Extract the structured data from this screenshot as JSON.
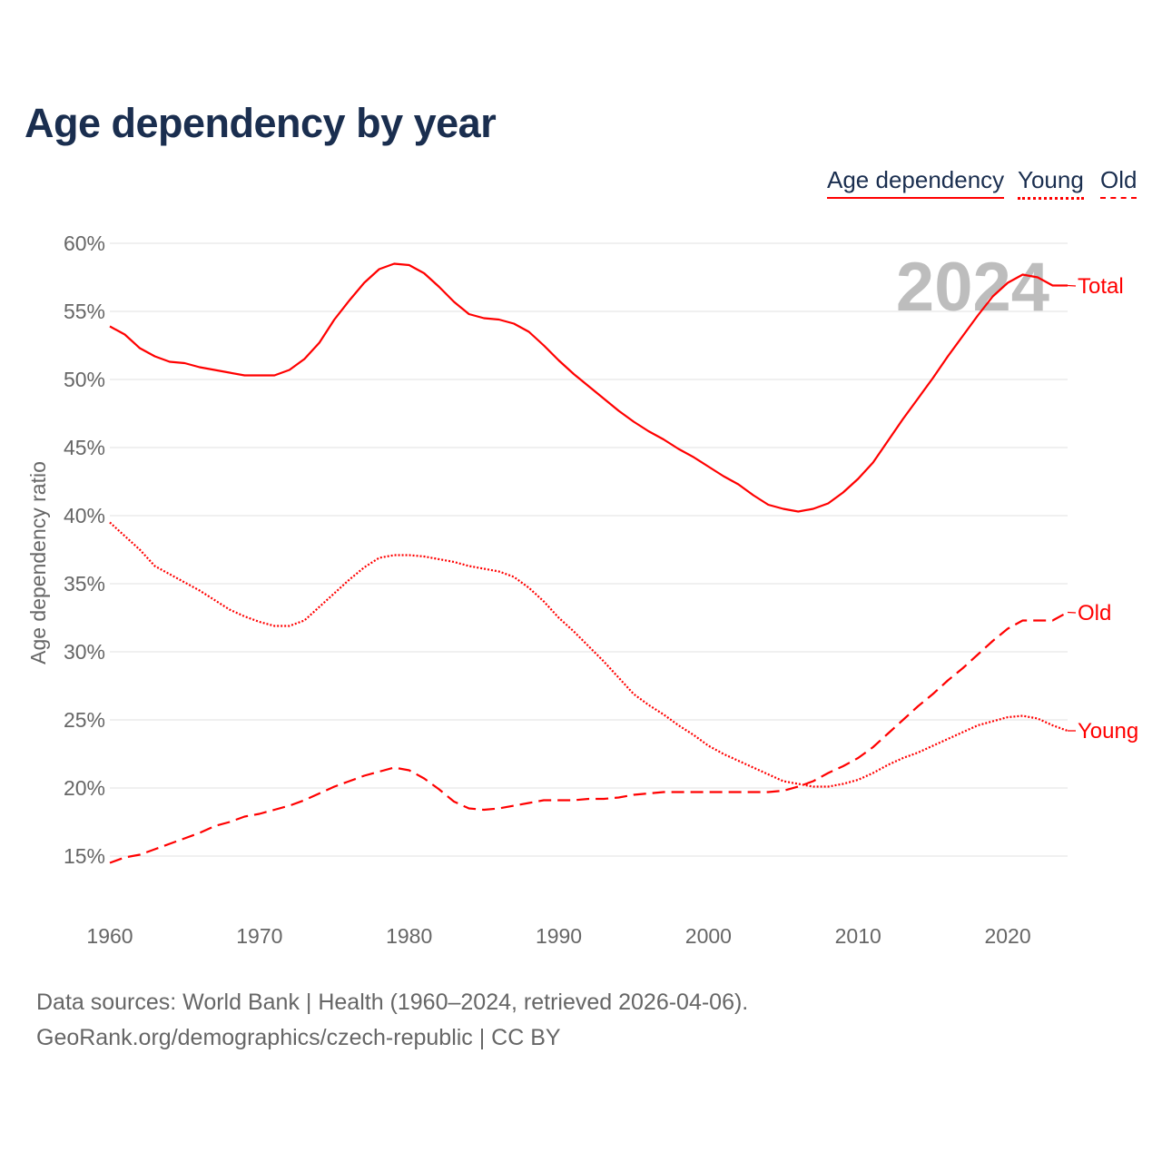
{
  "title": "Age dependency by year",
  "legend": [
    {
      "label": "Age dependency",
      "style": "solid"
    },
    {
      "label": "Young",
      "style": "dotted"
    },
    {
      "label": "Old",
      "style": "dashed"
    }
  ],
  "footer": {
    "line1": "Data sources: World Bank | Health (1960–2024, retrieved 2026-04-06).",
    "line2": "GeoRank.org/demographics/czech-republic | CC BY"
  },
  "chart_data": {
    "type": "line",
    "title": "Age dependency by year",
    "xlabel": "",
    "ylabel": "Age dependency ratio",
    "watermark_year": "2024",
    "xlim": [
      1960,
      2024
    ],
    "ylim": [
      15,
      60
    ],
    "x_ticks": [
      1960,
      1970,
      1980,
      1990,
      2000,
      2010,
      2020
    ],
    "y_ticks": [
      "15%",
      "20%",
      "25%",
      "30%",
      "35%",
      "40%",
      "45%",
      "50%",
      "55%",
      "60%"
    ],
    "y_tick_values": [
      15,
      20,
      25,
      30,
      35,
      40,
      45,
      50,
      55,
      60
    ],
    "grid": true,
    "legend_position": "top-right",
    "color": "#ff0000",
    "x": [
      1960,
      1961,
      1962,
      1963,
      1964,
      1965,
      1966,
      1967,
      1968,
      1969,
      1970,
      1971,
      1972,
      1973,
      1974,
      1975,
      1976,
      1977,
      1978,
      1979,
      1980,
      1981,
      1982,
      1983,
      1984,
      1985,
      1986,
      1987,
      1988,
      1989,
      1990,
      1991,
      1992,
      1993,
      1994,
      1995,
      1996,
      1997,
      1998,
      1999,
      2000,
      2001,
      2002,
      2003,
      2004,
      2005,
      2006,
      2007,
      2008,
      2009,
      2010,
      2011,
      2012,
      2013,
      2014,
      2015,
      2016,
      2017,
      2018,
      2019,
      2020,
      2021,
      2022,
      2023,
      2024
    ],
    "series": [
      {
        "name": "Total",
        "style": "solid",
        "values": [
          53.9,
          53.3,
          52.3,
          51.7,
          51.3,
          51.2,
          50.9,
          50.7,
          50.5,
          50.3,
          50.3,
          50.3,
          50.7,
          51.5,
          52.7,
          54.4,
          55.8,
          57.1,
          58.1,
          58.5,
          58.4,
          57.8,
          56.8,
          55.7,
          54.8,
          54.5,
          54.4,
          54.1,
          53.5,
          52.5,
          51.4,
          50.4,
          49.5,
          48.6,
          47.7,
          46.9,
          46.2,
          45.6,
          44.9,
          44.3,
          43.6,
          42.9,
          42.3,
          41.5,
          40.8,
          40.5,
          40.3,
          40.5,
          40.9,
          41.7,
          42.7,
          43.9,
          45.5,
          47.1,
          48.6,
          50.1,
          51.7,
          53.2,
          54.7,
          56.1,
          57.1,
          57.7,
          57.5,
          56.9,
          56.9
        ]
      },
      {
        "name": "Young",
        "style": "dotted",
        "values": [
          39.5,
          38.5,
          37.5,
          36.3,
          35.7,
          35.1,
          34.5,
          33.8,
          33.1,
          32.6,
          32.2,
          31.9,
          31.9,
          32.3,
          33.3,
          34.3,
          35.3,
          36.2,
          36.9,
          37.1,
          37.1,
          37.0,
          36.8,
          36.6,
          36.3,
          36.1,
          35.9,
          35.5,
          34.7,
          33.7,
          32.5,
          31.5,
          30.4,
          29.3,
          28.1,
          26.9,
          26.1,
          25.4,
          24.6,
          23.9,
          23.1,
          22.5,
          22.0,
          21.5,
          21.0,
          20.5,
          20.3,
          20.1,
          20.1,
          20.3,
          20.6,
          21.1,
          21.7,
          22.2,
          22.6,
          23.1,
          23.6,
          24.1,
          24.6,
          24.9,
          25.2,
          25.3,
          25.1,
          24.6,
          24.2
        ]
      },
      {
        "name": "Old",
        "style": "dashed",
        "values": [
          14.5,
          14.9,
          15.1,
          15.5,
          15.9,
          16.3,
          16.7,
          17.2,
          17.5,
          17.9,
          18.1,
          18.4,
          18.7,
          19.1,
          19.6,
          20.1,
          20.5,
          20.9,
          21.2,
          21.5,
          21.3,
          20.7,
          19.9,
          19.0,
          18.5,
          18.4,
          18.5,
          18.7,
          18.9,
          19.1,
          19.1,
          19.1,
          19.2,
          19.2,
          19.3,
          19.5,
          19.6,
          19.7,
          19.7,
          19.7,
          19.7,
          19.7,
          19.7,
          19.7,
          19.7,
          19.8,
          20.1,
          20.5,
          21.1,
          21.6,
          22.2,
          23.0,
          24.0,
          25.0,
          26.0,
          26.9,
          27.9,
          28.8,
          29.8,
          30.8,
          31.7,
          32.3,
          32.3,
          32.3,
          32.9
        ]
      }
    ]
  }
}
